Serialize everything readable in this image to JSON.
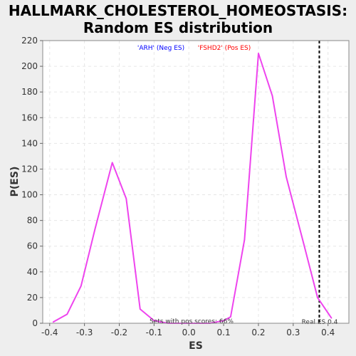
{
  "chart_data": {
    "type": "line",
    "title": "HALLMARK_CHOLESTEROL_HOMEOSTASIS: Random ES distribution",
    "title_lines": [
      "HALLMARK_CHOLESTEROL_HOMEOSTASIS:",
      "Random ES distribution"
    ],
    "xlabel": "ES",
    "ylabel": "P(ES)",
    "xlim": [
      -0.42,
      0.46
    ],
    "ylim": [
      0,
      220
    ],
    "x_ticks": [
      -0.4,
      -0.3,
      -0.2,
      -0.1,
      0.0,
      0.1,
      0.2,
      0.3,
      0.4
    ],
    "x_tick_labels": [
      "-0.4",
      "-0.3",
      "-0.2",
      "-0.1",
      "0.0",
      "0.1",
      "0.2",
      "0.3",
      "0.4"
    ],
    "y_ticks": [
      0,
      20,
      40,
      60,
      80,
      100,
      120,
      140,
      160,
      180,
      200,
      220
    ],
    "y_tick_labels": [
      "0",
      "20",
      "40",
      "60",
      "80",
      "100",
      "120",
      "140",
      "160",
      "180",
      "200",
      "220"
    ],
    "grid": true,
    "series": [
      {
        "color": "#ee44ee",
        "x": [
          -0.39,
          -0.35,
          -0.31,
          -0.27,
          -0.22,
          -0.18,
          -0.14,
          -0.1,
          -0.06,
          -0.02,
          0.02,
          0.06,
          0.08,
          0.1,
          0.12,
          0.16,
          0.2,
          0.24,
          0.28,
          0.33,
          0.37,
          0.41
        ],
        "y": [
          1,
          7,
          29,
          73,
          125,
          97,
          11,
          2,
          0,
          0,
          0,
          0,
          1,
          2,
          5,
          65,
          210,
          177,
          114,
          62,
          20,
          4
        ]
      }
    ],
    "reference_line": {
      "x": 0.375,
      "label": "Real ES 0.4",
      "color": "#000000",
      "style": "dashed"
    },
    "annotations": {
      "neg_label": "'ARH' (Neg ES)",
      "neg_color": "#0000ff",
      "pos_label": "'FSHD2' (Pos ES)",
      "pos_color": "#ff0000",
      "pos_scores": "Sets with pos scores: 66%"
    }
  }
}
